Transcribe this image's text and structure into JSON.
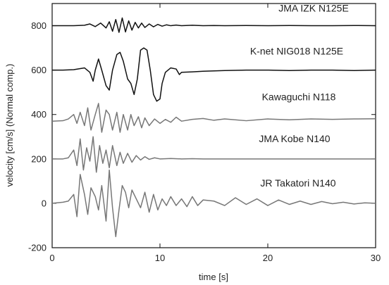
{
  "chart_data": {
    "type": "line",
    "title": "",
    "xlabel": "time [s]",
    "ylabel": "velocity [cm/s] (Normal comp.)",
    "xlim": [
      0,
      30
    ],
    "ylim": [
      -200,
      900
    ],
    "xticks": [
      0,
      10,
      20,
      30
    ],
    "yticks": [
      -200,
      0,
      200,
      400,
      600,
      800
    ],
    "grid": false,
    "series": [
      {
        "name": "JMA IZK N125E",
        "label": "JMA IZK N125E",
        "color": "#111111",
        "x": [
          0,
          1,
          2,
          3,
          3.5,
          4,
          4.5,
          5,
          5.3,
          5.6,
          5.9,
          6.2,
          6.5,
          6.8,
          7.1,
          7.4,
          7.7,
          8,
          8.3,
          8.6,
          9,
          9.4,
          9.8,
          10.2,
          10.6,
          11,
          11.5,
          12,
          13,
          14,
          15,
          16,
          18,
          20,
          22,
          24,
          26,
          28,
          30
        ],
        "y": [
          800,
          800,
          800,
          802,
          808,
          796,
          812,
          790,
          818,
          775,
          828,
          770,
          835,
          772,
          822,
          780,
          815,
          790,
          812,
          792,
          808,
          795,
          806,
          798,
          804,
          800,
          803,
          800,
          802,
          800,
          801,
          800,
          801,
          800,
          801,
          800,
          800,
          801,
          800
        ]
      },
      {
        "name": "K-net NIG018 N125E",
        "label": "K-net NIG018 N125E",
        "color": "#111111",
        "x": [
          0,
          1,
          2,
          3,
          3.5,
          3.8,
          4,
          4.3,
          4.6,
          5,
          5.3,
          5.6,
          6,
          6.3,
          6.6,
          7,
          7.3,
          7.6,
          7.9,
          8.2,
          8.5,
          8.8,
          9.1,
          9.4,
          9.7,
          10,
          10.2,
          10.5,
          11,
          11.5,
          11.8,
          12,
          13,
          14,
          16,
          18,
          20,
          22,
          24,
          26,
          28,
          30
        ],
        "y": [
          600,
          600,
          602,
          610,
          590,
          550,
          600,
          650,
          600,
          530,
          510,
          600,
          670,
          680,
          640,
          560,
          540,
          490,
          560,
          690,
          700,
          690,
          600,
          490,
          460,
          470,
          540,
          590,
          610,
          605,
          580,
          590,
          592,
          595,
          598,
          600,
          600,
          598,
          600,
          600,
          598,
          600
        ]
      },
      {
        "name": "Kawaguchi N118",
        "label": "Kawaguchi N118",
        "color": "#777777",
        "x": [
          0,
          1,
          1.5,
          2,
          2.3,
          2.6,
          3,
          3.3,
          3.6,
          4,
          4.3,
          4.6,
          5,
          5.3,
          5.6,
          6,
          6.3,
          6.6,
          7,
          7.3,
          7.6,
          8,
          8.3,
          8.6,
          9,
          9.5,
          10,
          10.5,
          11,
          11.5,
          12,
          13,
          14,
          15,
          16,
          18,
          20,
          22,
          24,
          26,
          28,
          30
        ],
        "y": [
          370,
          372,
          380,
          400,
          360,
          410,
          350,
          430,
          330,
          400,
          450,
          320,
          420,
          400,
          330,
          410,
          320,
          400,
          330,
          400,
          350,
          390,
          340,
          385,
          350,
          380,
          360,
          378,
          365,
          388,
          370,
          378,
          382,
          374,
          380,
          372,
          380,
          376,
          380,
          378,
          380,
          381
        ]
      },
      {
        "name": "JMA Kobe N140",
        "label": "JMA Kobe N140",
        "color": "#777777",
        "x": [
          0,
          1,
          1.5,
          2,
          2.3,
          2.6,
          2.9,
          3.2,
          3.5,
          3.8,
          4.1,
          4.4,
          4.7,
          5,
          5.3,
          5.6,
          6,
          6.3,
          6.6,
          7,
          7.4,
          7.8,
          8.2,
          8.6,
          9,
          9.5,
          10,
          11,
          12,
          13,
          14,
          16,
          18,
          20,
          22,
          24,
          26,
          28,
          30
        ],
        "y": [
          200,
          200,
          205,
          240,
          170,
          290,
          150,
          250,
          190,
          300,
          140,
          260,
          180,
          240,
          160,
          260,
          170,
          230,
          180,
          225,
          185,
          215,
          195,
          210,
          198,
          205,
          200,
          202,
          200,
          201,
          200,
          200,
          200,
          200,
          200,
          200,
          200,
          200,
          200
        ]
      },
      {
        "name": "JR Takatori N140",
        "label": "JR Takatori N140",
        "color": "#777777",
        "x": [
          0,
          1,
          1.5,
          2,
          2.3,
          2.6,
          3,
          3.3,
          3.6,
          4,
          4.3,
          4.6,
          5,
          5.3,
          5.6,
          5.9,
          6.2,
          6.5,
          6.8,
          7.1,
          7.4,
          7.8,
          8.2,
          8.6,
          9,
          9.4,
          9.8,
          10.2,
          10.6,
          11,
          11.5,
          12,
          12.5,
          13,
          13.5,
          14,
          15,
          16,
          17,
          18,
          19,
          20,
          21,
          22,
          23,
          24,
          25,
          26,
          27,
          28,
          29,
          30
        ],
        "y": [
          0,
          5,
          10,
          40,
          -60,
          130,
          40,
          -50,
          70,
          30,
          -30,
          80,
          -80,
          150,
          -20,
          -150,
          -30,
          80,
          50,
          -20,
          60,
          20,
          -20,
          50,
          -40,
          40,
          -30,
          20,
          -10,
          30,
          -10,
          20,
          -15,
          30,
          -10,
          15,
          10,
          -10,
          25,
          -5,
          20,
          -10,
          15,
          -5,
          10,
          -5,
          8,
          -2,
          5,
          -3,
          2,
          0
        ]
      }
    ]
  }
}
